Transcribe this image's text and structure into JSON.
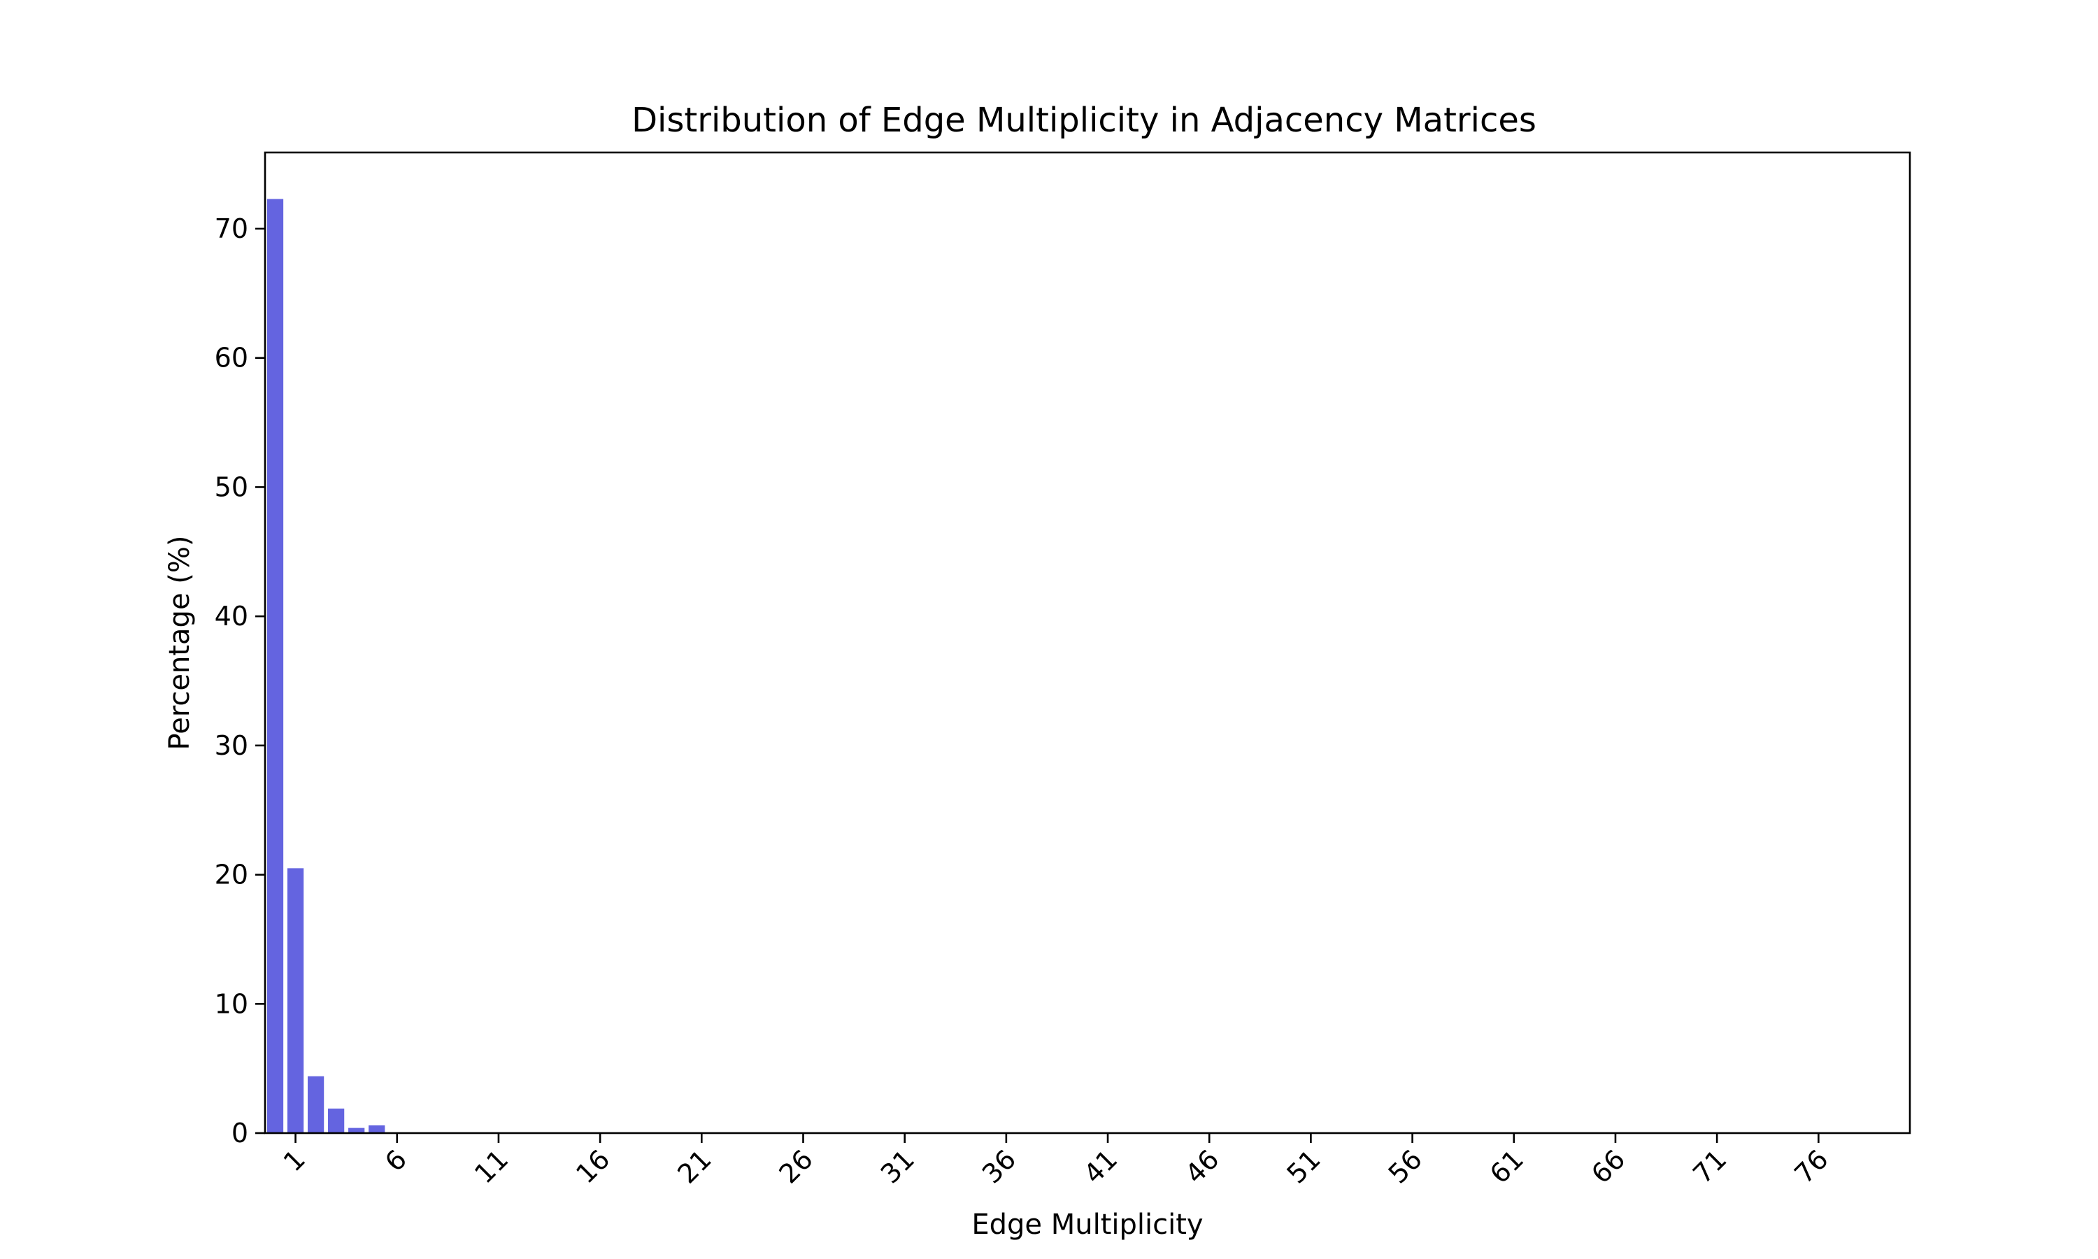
{
  "chart_data": {
    "type": "bar",
    "title": "Distribution of Edge Multiplicity in Adjacency Matrices",
    "xlabel": "Edge Multiplicity",
    "ylabel": "Percentage (%)",
    "bar_color": "#6464e0",
    "x": [
      0,
      1,
      2,
      3,
      4,
      5
    ],
    "values": [
      72.3,
      20.5,
      4.4,
      1.9,
      0.4,
      0.6
    ],
    "xlim": [
      -0.5,
      80.5
    ],
    "ylim": [
      0,
      75.9
    ],
    "xticks": [
      1,
      6,
      11,
      16,
      21,
      26,
      31,
      36,
      41,
      46,
      51,
      56,
      61,
      66,
      71,
      76
    ],
    "yticks": [
      0,
      10,
      20,
      30,
      40,
      50,
      60,
      70
    ],
    "grid": false,
    "legend": "none"
  }
}
